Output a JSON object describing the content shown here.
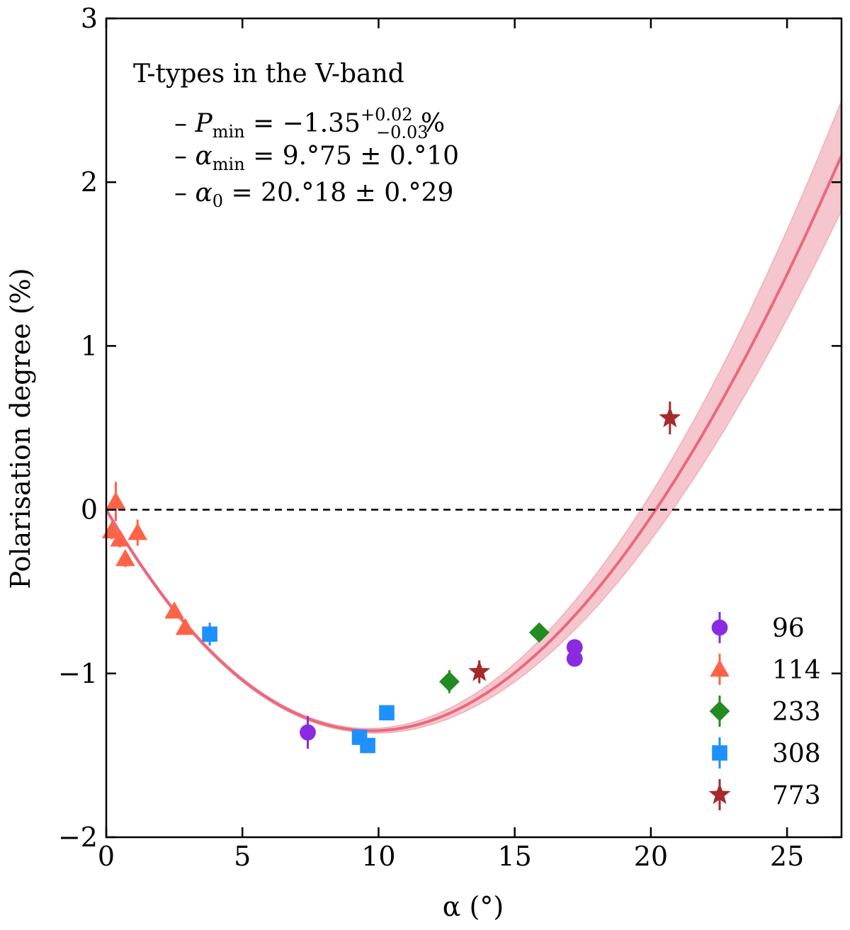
{
  "chart_data": {
    "type": "scatter",
    "xlabel": "α (°)",
    "ylabel": "Polarisation degree (%)",
    "xlim": [
      0,
      27
    ],
    "ylim": [
      -2,
      3
    ],
    "xticks": [
      0,
      5,
      10,
      15,
      20,
      25
    ],
    "yticks": [
      -2,
      -1,
      0,
      1,
      2,
      3
    ],
    "grid": false,
    "legend_position": "bottom-right",
    "annotation": {
      "title": "T-types in the V-band",
      "line1": {
        "prefix": "– ",
        "sym": "P",
        "sub": "min",
        "mid": " = −1.35",
        "sup": "+0.02",
        "lower": "−0.03",
        "suffix": " %"
      },
      "line2": {
        "prefix": "– ",
        "sym": "α",
        "sub": "min",
        "rest": " = 9.°75 ± 0.°10"
      },
      "line3": {
        "prefix": "– ",
        "sym": "α",
        "sub": "0",
        "rest": " = 20.°18 ± 0.°29"
      }
    },
    "fit": {
      "p_min": -1.35,
      "alpha_min": 9.75,
      "alpha_0": 20.18,
      "color": "#e8697d",
      "band_color": "#f2b3be"
    },
    "zero_line": {
      "y": 0,
      "style": "dashed"
    },
    "series": [
      {
        "name": "96",
        "marker": "circle",
        "color": "#8a2be2",
        "points": [
          {
            "x": 7.4,
            "y": -1.36,
            "err": 0.1
          },
          {
            "x": 17.2,
            "y": -0.84,
            "err": 0.04
          },
          {
            "x": 17.2,
            "y": -0.91,
            "err": 0.04
          }
        ]
      },
      {
        "name": "114",
        "marker": "triangle",
        "color": "#ff6347",
        "points": [
          {
            "x": 0.2,
            "y": -0.13,
            "err": 0.05
          },
          {
            "x": 0.35,
            "y": 0.05,
            "err": 0.12
          },
          {
            "x": 0.5,
            "y": -0.18,
            "err": 0.05
          },
          {
            "x": 0.7,
            "y": -0.3,
            "err": 0.05
          },
          {
            "x": 1.15,
            "y": -0.14,
            "err": 0.08
          },
          {
            "x": 2.5,
            "y": -0.62,
            "err": 0.03
          },
          {
            "x": 2.9,
            "y": -0.72,
            "err": 0.03
          }
        ]
      },
      {
        "name": "233",
        "marker": "diamond",
        "color": "#228b22",
        "points": [
          {
            "x": 12.6,
            "y": -1.05,
            "err": 0.07
          },
          {
            "x": 15.9,
            "y": -0.75,
            "err": 0.04
          }
        ]
      },
      {
        "name": "308",
        "marker": "square",
        "color": "#1e90ff",
        "points": [
          {
            "x": 3.8,
            "y": -0.76,
            "err": 0.07
          },
          {
            "x": 9.3,
            "y": -1.39,
            "err": 0.04
          },
          {
            "x": 9.6,
            "y": -1.44,
            "err": 0.04
          },
          {
            "x": 10.3,
            "y": -1.24,
            "err": 0.04
          }
        ]
      },
      {
        "name": "773",
        "marker": "star",
        "color": "#a52a2a",
        "points": [
          {
            "x": 13.7,
            "y": -0.99,
            "err": 0.07
          },
          {
            "x": 20.7,
            "y": 0.56,
            "err": 0.1
          }
        ]
      }
    ]
  }
}
